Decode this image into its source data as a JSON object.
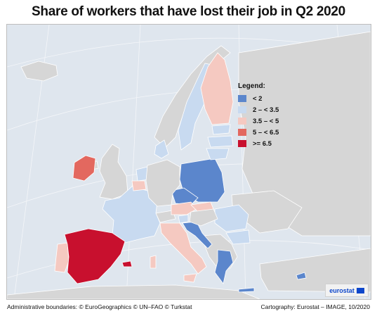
{
  "title": "Share of workers that have lost their job in Q2 2020",
  "legend": {
    "title": "Legend:",
    "items": [
      {
        "label": "< 2",
        "color": "#5b86cc"
      },
      {
        "label": "2 – < 3.5",
        "color": "#c8daf0"
      },
      {
        "label": "3.5 – < 5",
        "color": "#f5c9c1"
      },
      {
        "label": "5 – < 6.5",
        "color": "#e3685f"
      },
      {
        "label": ">= 6.5",
        "color": "#c8102e"
      }
    ]
  },
  "logo_text": "eurostat",
  "footer": {
    "left": "Administrative boundaries: © EuroGeographics © UN–FAO © Turkstat",
    "right": "Cartography: Eurostat – IMAGE, 10/2020"
  },
  "colors": {
    "sea": "#dfe6ee",
    "non_eu": "#d6d6d6",
    "border": "#ffffff"
  }
}
